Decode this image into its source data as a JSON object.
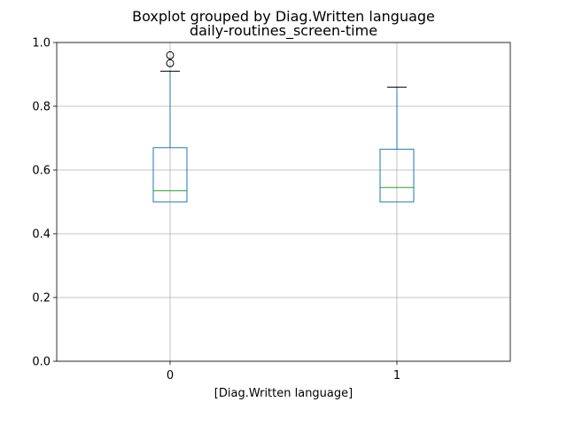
{
  "chart_data": {
    "type": "boxplot",
    "suptitle": "Boxplot grouped by Diag.Written language",
    "title": "daily-routines_screen-time",
    "xlabel": "[Diag.Written language]",
    "ylabel": "",
    "categories": [
      "0",
      "1"
    ],
    "ylim": [
      0.0,
      1.0
    ],
    "yticks": [
      "0.0",
      "0.2",
      "0.4",
      "0.6",
      "0.8",
      "1.0"
    ],
    "grid": true,
    "boxes": [
      {
        "category": "0",
        "whislo": 0.5,
        "q1": 0.5,
        "med": 0.535,
        "q3": 0.67,
        "whishi": 0.91,
        "fliers": [
          0.935,
          0.96
        ]
      },
      {
        "category": "1",
        "whislo": 0.5,
        "q1": 0.5,
        "med": 0.545,
        "q3": 0.665,
        "whishi": 0.86,
        "fliers": []
      }
    ],
    "colors": {
      "box": "#1f77b4",
      "median": "#2ca02c",
      "whisker_cap": "#000000",
      "grid": "#b0b0b0",
      "axes": "#000000"
    }
  }
}
